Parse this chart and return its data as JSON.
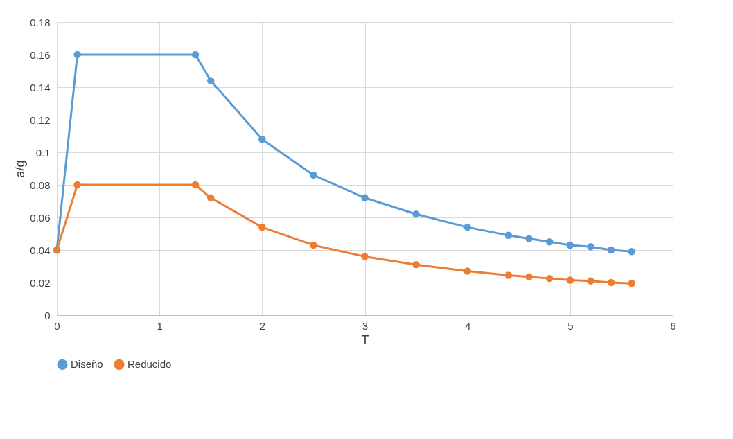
{
  "chart_data": {
    "type": "line",
    "xlabel": "T",
    "ylabel": "a/g",
    "x": [
      0,
      0.2,
      1.35,
      1.5,
      2,
      2.5,
      3,
      3.5,
      4,
      4.4,
      4.6,
      4.8,
      5,
      5.2,
      5.4,
      5.6
    ],
    "series": [
      {
        "name": "Diseño",
        "color": "#5b9bd5",
        "values": [
          0.04,
          0.16,
          0.16,
          0.144,
          0.108,
          0.086,
          0.072,
          0.062,
          0.054,
          0.049,
          0.047,
          0.045,
          0.043,
          0.042,
          0.04,
          0.039
        ]
      },
      {
        "name": "Reducido",
        "color": "#ed7d31",
        "values": [
          0.04,
          0.08,
          0.08,
          0.072,
          0.054,
          0.043,
          0.036,
          0.031,
          0.027,
          0.0245,
          0.0235,
          0.0225,
          0.0215,
          0.021,
          0.02,
          0.0195
        ]
      }
    ],
    "xlim": [
      0,
      6
    ],
    "xticks": [
      0,
      1,
      2,
      3,
      4,
      5,
      6
    ],
    "ylim": [
      0,
      0.18
    ],
    "yticks": [
      0,
      0.02,
      0.04,
      0.06,
      0.08,
      0.1,
      0.12,
      0.14,
      0.16,
      0.18
    ],
    "grid": true,
    "legend": "bottom",
    "marker": "circle",
    "line_style": "solid"
  }
}
